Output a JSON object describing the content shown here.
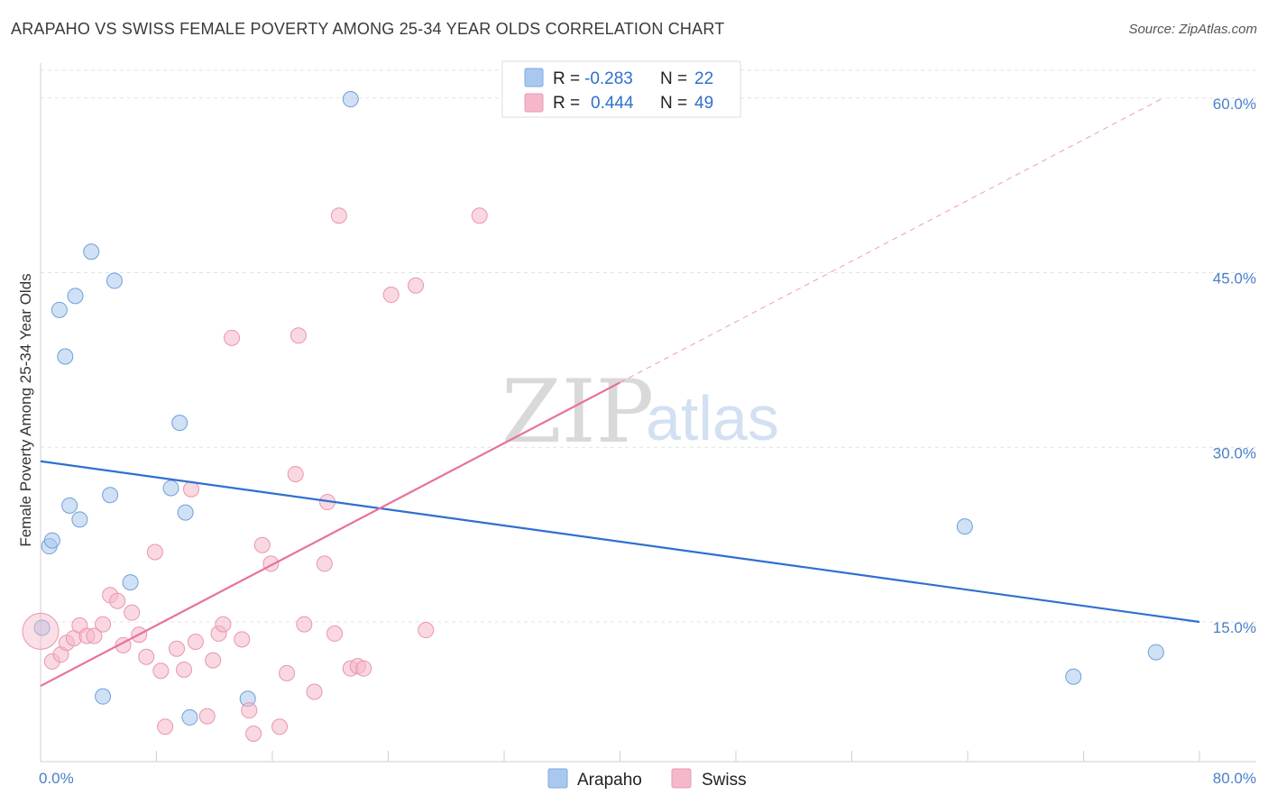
{
  "header": {
    "title": "ARAPAHO VS SWISS FEMALE POVERTY AMONG 25-34 YEAR OLDS CORRELATION CHART",
    "source": "Source: ZipAtlas.com"
  },
  "watermark": {
    "zip": "ZIP",
    "atlas": "atlas"
  },
  "legend": {
    "rows": [
      {
        "r_label": "R =",
        "r_value": "-0.283",
        "n_label": "N =",
        "n_value": "22",
        "color": "#a9c8ef"
      },
      {
        "r_label": "R =",
        "r_value": "0.444",
        "n_label": "N =",
        "n_value": "49",
        "color": "#f5b8c9"
      }
    ]
  },
  "bottom_legend": {
    "items": [
      {
        "label": "Arapaho",
        "color": "#a9c8ef"
      },
      {
        "label": "Swiss",
        "color": "#f5b8c9"
      }
    ]
  },
  "chart_data": {
    "type": "scatter",
    "title": "ARAPAHO VS SWISS FEMALE POVERTY AMONG 25-34 YEAR OLDS CORRELATION CHART",
    "xlabel": "",
    "ylabel": "Female Poverty Among 25-34 Year Olds",
    "xlim": [
      0,
      80
    ],
    "ylim": [
      3,
      63
    ],
    "x_tick_labels": {
      "min": "0.0%",
      "max": "80.0%"
    },
    "y_ticks": [
      {
        "value": 15,
        "label": "15.0%"
      },
      {
        "value": 30,
        "label": "30.0%"
      },
      {
        "value": 45,
        "label": "45.0%"
      },
      {
        "value": 60,
        "label": "60.0%"
      }
    ],
    "x_minor_ticks": [
      0,
      8,
      16,
      24,
      32,
      40,
      48,
      56,
      64,
      72,
      80
    ],
    "series": [
      {
        "name": "Arapaho",
        "color": "#a9c8ef",
        "stroke": "#6f9fd8",
        "points": [
          [
            0.1,
            14.5
          ],
          [
            0.6,
            21.5
          ],
          [
            0.8,
            22.0
          ],
          [
            1.3,
            41.8
          ],
          [
            1.7,
            37.8
          ],
          [
            2.0,
            25.0
          ],
          [
            2.4,
            43.0
          ],
          [
            2.7,
            23.8
          ],
          [
            3.5,
            46.8
          ],
          [
            4.3,
            8.6
          ],
          [
            4.8,
            25.9
          ],
          [
            5.1,
            44.3
          ],
          [
            6.2,
            18.4
          ],
          [
            9.0,
            26.5
          ],
          [
            9.6,
            32.1
          ],
          [
            10.0,
            24.4
          ],
          [
            10.3,
            6.8
          ],
          [
            14.3,
            8.4
          ],
          [
            21.4,
            59.9
          ],
          [
            63.8,
            23.2
          ],
          [
            71.3,
            10.3
          ],
          [
            77.0,
            12.4
          ]
        ]
      },
      {
        "name": "Swiss",
        "color": "#f5b8c9",
        "stroke": "#e896ad",
        "points": [
          [
            0.0,
            14.2
          ],
          [
            0.8,
            11.6
          ],
          [
            1.4,
            12.2
          ],
          [
            1.8,
            13.2
          ],
          [
            2.3,
            13.6
          ],
          [
            2.7,
            14.7
          ],
          [
            3.2,
            13.8
          ],
          [
            3.7,
            13.8
          ],
          [
            4.3,
            14.8
          ],
          [
            4.8,
            17.3
          ],
          [
            5.3,
            16.8
          ],
          [
            5.7,
            13.0
          ],
          [
            6.3,
            15.8
          ],
          [
            6.8,
            13.9
          ],
          [
            7.3,
            12.0
          ],
          [
            7.9,
            21.0
          ],
          [
            8.3,
            10.8
          ],
          [
            8.6,
            6.0
          ],
          [
            9.4,
            12.7
          ],
          [
            9.9,
            10.9
          ],
          [
            10.4,
            26.4
          ],
          [
            10.7,
            13.3
          ],
          [
            11.5,
            6.9
          ],
          [
            11.9,
            11.7
          ],
          [
            12.3,
            14.0
          ],
          [
            13.2,
            39.4
          ],
          [
            13.9,
            13.5
          ],
          [
            14.4,
            7.4
          ],
          [
            14.7,
            5.4
          ],
          [
            15.3,
            21.6
          ],
          [
            15.9,
            20.0
          ],
          [
            16.5,
            6.0
          ],
          [
            17.0,
            10.6
          ],
          [
            17.8,
            39.6
          ],
          [
            17.6,
            27.7
          ],
          [
            18.2,
            14.8
          ],
          [
            18.9,
            9.0
          ],
          [
            19.6,
            20.0
          ],
          [
            20.3,
            14.0
          ],
          [
            19.8,
            25.3
          ],
          [
            20.6,
            49.9
          ],
          [
            21.4,
            11.0
          ],
          [
            21.9,
            11.2
          ],
          [
            22.3,
            11.0
          ],
          [
            24.2,
            43.1
          ],
          [
            25.9,
            43.9
          ],
          [
            26.6,
            14.3
          ],
          [
            30.3,
            49.9
          ],
          [
            12.6,
            14.8
          ]
        ]
      }
    ],
    "trend_lines": [
      {
        "series": "Arapaho",
        "color": "#2f6fd0",
        "x_start": 0,
        "y_start": 28.8,
        "x_end": 80,
        "y_end": 15.0,
        "solid_until": 80
      },
      {
        "series": "Swiss",
        "color": "#e8729a",
        "x_start": 0,
        "y_start": 9.5,
        "x_end": 77.5,
        "y_end": 60.0,
        "solid_until": 40
      }
    ]
  }
}
